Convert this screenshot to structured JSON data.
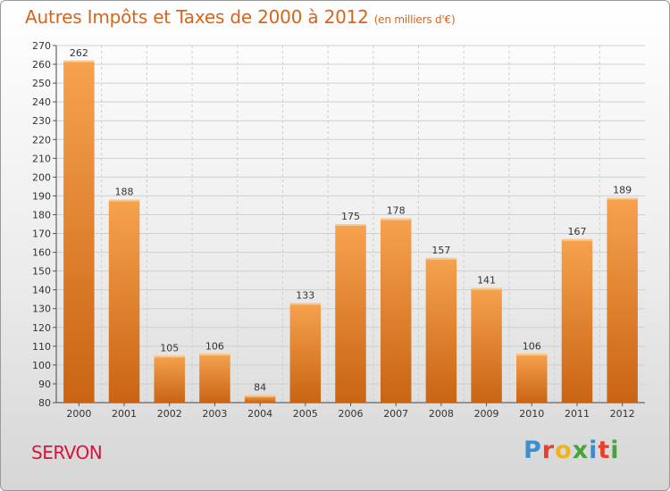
{
  "header": {
    "title": "Autres Impôts et Taxes de 2000 à 2012",
    "unit": "(en milliers d'€)"
  },
  "footer": {
    "place": "SERVON",
    "logo_letters": [
      "P",
      "r",
      "o",
      "x",
      "i",
      "t",
      "i"
    ],
    "logo_colors": [
      "#3a8fd0",
      "#e8402a",
      "#f2b21c",
      "#47a33e",
      "#3a8fd0",
      "#e8402a",
      "#47a33e"
    ]
  },
  "colors": {
    "accent": "#d8641a",
    "bar_top": "#f6a24e",
    "bar_bottom": "#c96414",
    "grid": "#cfcfcf"
  },
  "chart_data": {
    "type": "bar",
    "title": "Autres Impôts et Taxes de 2000 à 2012",
    "categories": [
      "2000",
      "2001",
      "2002",
      "2003",
      "2004",
      "2005",
      "2006",
      "2007",
      "2008",
      "2009",
      "2010",
      "2011",
      "2012"
    ],
    "values": [
      262,
      188,
      105,
      106,
      84,
      133,
      175,
      178,
      157,
      141,
      106,
      167,
      189
    ],
    "ylim": [
      80,
      270
    ],
    "yticks": [
      80,
      90,
      100,
      110,
      120,
      130,
      140,
      150,
      160,
      170,
      180,
      190,
      200,
      210,
      220,
      230,
      240,
      250,
      260,
      270
    ],
    "grid": true,
    "xlabel": "",
    "ylabel": ""
  }
}
